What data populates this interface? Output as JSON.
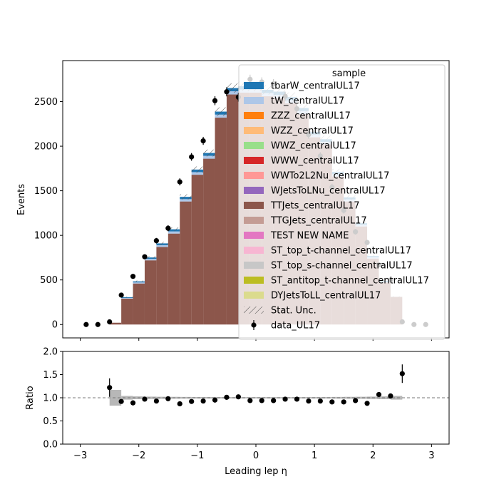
{
  "chart_data": [
    {
      "panel": "main",
      "type": "stacked-histogram",
      "xlabel": "",
      "ylabel": "Events",
      "xlim": [
        -3.3,
        3.3
      ],
      "ylim": [
        -150,
        2960
      ],
      "yticks": [
        0,
        500,
        1000,
        1500,
        2000,
        2500
      ],
      "bin_edges": [
        -2.5,
        -2.3,
        -2.1,
        -1.9,
        -1.7,
        -1.5,
        -1.3,
        -1.1,
        -0.9,
        -0.7,
        -0.5,
        -0.3,
        -0.1,
        0.1,
        0.3,
        0.5,
        0.7,
        0.9,
        1.1,
        1.3,
        1.5,
        1.7,
        1.9,
        2.1,
        2.3,
        2.5
      ],
      "legend_title": "sample",
      "legend_position": "upper-right",
      "series": [
        {
          "name": "tbarW_centralUL17",
          "color": "#1f77b4",
          "values": [
            0,
            8,
            12,
            16,
            20,
            24,
            26,
            29,
            32,
            34,
            36,
            36,
            36,
            36,
            36,
            36,
            34,
            31,
            29,
            26,
            23,
            18,
            14,
            10,
            0
          ]
        },
        {
          "name": "tW_centralUL17",
          "color": "#aec7e8",
          "values": [
            0,
            8,
            12,
            16,
            20,
            24,
            26,
            29,
            32,
            34,
            36,
            36,
            36,
            36,
            36,
            36,
            34,
            31,
            29,
            26,
            23,
            18,
            14,
            10,
            0
          ]
        },
        {
          "name": "ZZZ_centralUL17",
          "color": "#ff7f0e",
          "values": [
            0,
            0,
            0,
            0,
            0,
            0,
            0,
            0,
            0,
            0,
            0,
            0,
            0,
            0,
            0,
            0,
            0,
            0,
            0,
            0,
            0,
            0,
            0,
            0,
            0
          ]
        },
        {
          "name": "WZZ_centralUL17",
          "color": "#ffbb78",
          "values": [
            0,
            0,
            0,
            0,
            0,
            0,
            0,
            0,
            0,
            0,
            0,
            0,
            0,
            0,
            0,
            0,
            0,
            0,
            0,
            0,
            0,
            0,
            0,
            0,
            0
          ]
        },
        {
          "name": "WWZ_centralUL17",
          "color": "#98df8a",
          "values": [
            0,
            0,
            0,
            0,
            0,
            0,
            0,
            0,
            0,
            0,
            0,
            0,
            0,
            0,
            0,
            0,
            0,
            0,
            0,
            0,
            0,
            0,
            0,
            0,
            0
          ]
        },
        {
          "name": "WWW_centralUL17",
          "color": "#d62728",
          "values": [
            0,
            0,
            0,
            0,
            0,
            0,
            0,
            0,
            0,
            0,
            0,
            0,
            0,
            0,
            0,
            0,
            0,
            0,
            0,
            0,
            0,
            0,
            0,
            0,
            0
          ]
        },
        {
          "name": "WWTo2L2Nu_centralUL17",
          "color": "#ff9896",
          "values": [
            0,
            0,
            0,
            0,
            0,
            0,
            0,
            0,
            0,
            0,
            0,
            0,
            0,
            0,
            0,
            0,
            0,
            0,
            0,
            0,
            0,
            0,
            0,
            0,
            0
          ]
        },
        {
          "name": "WJetsToLNu_centralUL17",
          "color": "#9467bd",
          "values": [
            0,
            0,
            0,
            0,
            0,
            0,
            0,
            0,
            0,
            0,
            0,
            0,
            0,
            0,
            0,
            0,
            0,
            0,
            0,
            0,
            0,
            0,
            0,
            0,
            0
          ]
        },
        {
          "name": "TTJets_centralUL17",
          "color": "#8c564b",
          "values": [
            20,
            290,
            460,
            720,
            870,
            1020,
            1380,
            1680,
            1860,
            2320,
            2580,
            2600,
            2600,
            2560,
            2540,
            2480,
            2360,
            2100,
            2020,
            1660,
            1380,
            1100,
            740,
            470,
            310
          ]
        },
        {
          "name": "TTGJets_centralUL17",
          "color": "#c49c94",
          "values": [
            0,
            0,
            0,
            0,
            0,
            0,
            0,
            0,
            0,
            0,
            0,
            0,
            0,
            0,
            0,
            0,
            0,
            0,
            0,
            0,
            0,
            0,
            0,
            0,
            0
          ]
        },
        {
          "name": "TEST NEW NAME",
          "color": "#e377c2",
          "values": [
            0,
            0,
            0,
            0,
            0,
            0,
            0,
            0,
            0,
            0,
            0,
            0,
            0,
            0,
            0,
            0,
            0,
            0,
            0,
            0,
            0,
            0,
            0,
            0,
            0
          ]
        },
        {
          "name": "ST_top_t-channel_centralUL17",
          "color": "#f7b6d2",
          "values": [
            0,
            0,
            0,
            0,
            0,
            0,
            0,
            0,
            0,
            0,
            0,
            0,
            0,
            0,
            0,
            0,
            0,
            0,
            0,
            0,
            0,
            0,
            0,
            0,
            0
          ]
        },
        {
          "name": "ST_top_s-channel_centralUL17",
          "color": "#c7c7c7",
          "values": [
            0,
            0,
            0,
            0,
            0,
            0,
            0,
            0,
            0,
            0,
            0,
            0,
            0,
            0,
            0,
            0,
            0,
            0,
            0,
            0,
            0,
            0,
            0,
            0,
            0
          ]
        },
        {
          "name": "ST_antitop_t-channel_centralUL17",
          "color": "#bcbd22",
          "values": [
            0,
            0,
            0,
            0,
            0,
            0,
            0,
            0,
            0,
            0,
            0,
            0,
            0,
            0,
            0,
            0,
            0,
            0,
            0,
            0,
            0,
            0,
            0,
            0,
            0
          ]
        },
        {
          "name": "DYJetsToLL_centralUL17",
          "color": "#dbdb8d",
          "values": [
            0,
            0,
            0,
            0,
            0,
            0,
            0,
            0,
            0,
            0,
            0,
            0,
            0,
            0,
            0,
            0,
            0,
            0,
            0,
            0,
            0,
            0,
            0,
            0,
            0
          ]
        }
      ],
      "stat_unc_label": "Stat. Unc.",
      "stat_unc_rel": 0.02,
      "data": {
        "name": "data_UL17",
        "x": [
          -2.9,
          -2.7,
          -2.5,
          -2.3,
          -2.1,
          -1.9,
          -1.7,
          -1.5,
          -1.3,
          -1.1,
          -0.9,
          -0.7,
          -0.5,
          -0.3,
          -0.1,
          0.1,
          0.3,
          0.5,
          0.7,
          0.9,
          1.1,
          1.3,
          1.5,
          1.7,
          1.9,
          2.1,
          2.3,
          2.5,
          2.7,
          2.9
        ],
        "y": [
          0,
          0,
          30,
          330,
          540,
          760,
          940,
          1080,
          1600,
          1880,
          2060,
          2510,
          2610,
          2550,
          2750,
          2720,
          2700,
          2560,
          2420,
          2130,
          1890,
          1540,
          1280,
          1040,
          920,
          670,
          500,
          30,
          0,
          0
        ],
        "err": [
          0,
          0,
          6,
          18,
          23,
          28,
          31,
          33,
          40,
          43,
          45,
          50,
          51,
          50,
          52,
          52,
          52,
          51,
          49,
          46,
          43,
          39,
          36,
          32,
          30,
          26,
          22,
          6,
          0,
          0
        ]
      }
    },
    {
      "panel": "ratio",
      "type": "scatter-with-errorbars",
      "xlabel": "Leading lep η",
      "ylabel": "Ratio",
      "xlim": [
        -3.3,
        3.3
      ],
      "ylim": [
        0.0,
        2.0
      ],
      "yticks": [
        0.0,
        0.5,
        1.0,
        1.5,
        2.0
      ],
      "xticks": [
        -3,
        -2,
        -1,
        0,
        1,
        2,
        3
      ],
      "reference_line": 1.0,
      "unc_band_halfwidth": [
        0.17,
        0.04,
        0.03,
        0.025,
        0.022,
        0.02,
        0.018,
        0.016,
        0.016,
        0.015,
        0.014,
        0.014,
        0.014,
        0.014,
        0.014,
        0.014,
        0.015,
        0.016,
        0.016,
        0.018,
        0.02,
        0.022,
        0.025,
        0.03,
        0.04
      ],
      "points": {
        "x": [
          -2.5,
          -2.3,
          -2.1,
          -1.9,
          -1.7,
          -1.5,
          -1.3,
          -1.1,
          -0.9,
          -0.7,
          -0.5,
          -0.3,
          -0.1,
          0.1,
          0.3,
          0.5,
          0.7,
          0.9,
          1.1,
          1.3,
          1.5,
          1.7,
          1.9,
          2.1,
          2.3,
          2.5
        ],
        "y": [
          1.22,
          0.92,
          0.89,
          0.97,
          0.93,
          0.98,
          0.87,
          0.92,
          0.93,
          0.95,
          1.01,
          1.02,
          0.94,
          0.94,
          0.94,
          0.97,
          0.97,
          0.93,
          0.93,
          0.91,
          0.91,
          0.94,
          0.88,
          1.07,
          1.04,
          1.52
        ],
        "err": [
          0.2,
          0.05,
          0.04,
          0.03,
          0.03,
          0.03,
          0.025,
          0.025,
          0.025,
          0.022,
          0.02,
          0.02,
          0.02,
          0.02,
          0.02,
          0.02,
          0.02,
          0.022,
          0.022,
          0.025,
          0.028,
          0.03,
          0.035,
          0.04,
          0.05,
          0.2
        ]
      }
    }
  ]
}
